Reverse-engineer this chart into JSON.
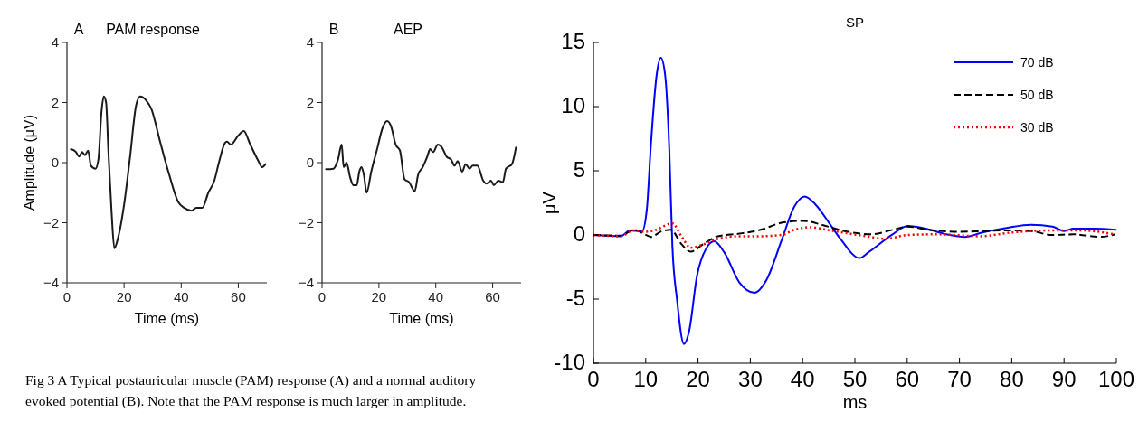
{
  "chart_data": [
    {
      "type": "line",
      "title": "PAM response",
      "xlabel": "Time (ms)",
      "ylabel": "Amplitude (μV)",
      "xlim": [
        0,
        70
      ],
      "ylim": [
        -4,
        4
      ],
      "xticks": [
        0,
        20,
        40,
        60
      ],
      "yticks": [
        -4,
        -2,
        0,
        2,
        4
      ],
      "legend": false,
      "annotations": [
        "A",
        "Fig 3 A Typical postauricular muscle (PAM) response (A) and a normal auditory evoked potential (B). Note that the PAM response is much larger in amplitude."
      ],
      "series": [
        {
          "color": "#1a1a1a",
          "x": [
            1.4,
            3.2,
            4.2,
            5.3,
            6.3,
            7.4,
            8.4,
            10,
            11,
            12.1,
            12.9,
            13.7,
            14.5,
            15.6,
            16.6,
            17.9,
            20,
            22.1,
            24.2,
            25.6,
            27.9,
            29.5,
            32.6,
            35.8,
            38.9,
            41,
            43.7,
            45.3,
            47.4,
            49.5,
            51.6,
            53.2,
            55.3,
            56,
            57.4,
            60,
            61.9,
            64.2,
            66.8,
            68.4,
            69.5
          ],
          "values": [
            0.45,
            0.35,
            0.2,
            0.35,
            0.25,
            0.4,
            -0.1,
            -0.2,
            0.1,
            1.7,
            2.2,
            2.0,
            0.4,
            -1.6,
            -2.85,
            -2.5,
            -1.4,
            0.2,
            1.9,
            2.2,
            2.05,
            1.8,
            0.7,
            -0.4,
            -1.3,
            -1.5,
            -1.6,
            -1.5,
            -1.5,
            -1.0,
            -0.6,
            0,
            0.65,
            0.7,
            0.6,
            0.9,
            1.05,
            0.6,
            0.1,
            -0.15,
            -0.05
          ]
        }
      ]
    },
    {
      "type": "line",
      "title": "AEP",
      "xlabel": "Time (ms)",
      "xlim": [
        0,
        70
      ],
      "ylim": [
        -4,
        4
      ],
      "xticks": [
        0,
        20,
        40,
        60
      ],
      "yticks": [
        -4,
        -2,
        0,
        2,
        4
      ],
      "legend": false,
      "annotations": [
        "B"
      ],
      "series": [
        {
          "color": "#1a1a1a",
          "x": [
            1.4,
            4,
            5.6,
            6.9,
            7.6,
            8.6,
            9.9,
            11,
            12.2,
            13.1,
            13.9,
            14.7,
            15.7,
            17.3,
            19.5,
            21.1,
            22.9,
            24.3,
            25.9,
            27.4,
            29,
            30.6,
            32.6,
            33.8,
            35.4,
            37,
            38,
            39.1,
            40.7,
            42.2,
            43.8,
            45.4,
            46.6,
            47.7,
            49.3,
            50.5,
            51.9,
            53,
            54.6,
            56.7,
            57.8,
            59.4,
            60.4,
            62,
            63.6,
            64.7,
            66.8,
            68.2
          ],
          "values": [
            -0.22,
            -0.2,
            0.1,
            0.6,
            -0.15,
            0,
            -0.5,
            -0.75,
            -0.75,
            -0.3,
            -0.15,
            -0.4,
            -1.0,
            -0.3,
            0.5,
            1.1,
            1.38,
            1.2,
            0.6,
            0.4,
            -0.55,
            -0.65,
            -0.95,
            -0.4,
            -0.15,
            0.2,
            0.45,
            0.35,
            0.6,
            0.5,
            0.2,
            0.1,
            -0.1,
            0.05,
            -0.3,
            -0.05,
            -0.2,
            -0.1,
            -0.1,
            -0.6,
            -0.7,
            -0.6,
            -0.75,
            -0.6,
            -0.65,
            -0.2,
            -0.05,
            0.5
          ]
        }
      ]
    },
    {
      "type": "line",
      "title": "SP",
      "xlabel": "ms",
      "ylabel": "μV",
      "xlim": [
        0,
        100
      ],
      "ylim": [
        -10,
        15
      ],
      "xticks": [
        0,
        10,
        20,
        30,
        40,
        50,
        60,
        70,
        80,
        90,
        100
      ],
      "yticks": [
        -10,
        -5,
        0,
        5,
        10,
        15
      ],
      "legend": "top right",
      "series": [
        {
          "name": "70 dB",
          "color": "#0000ff",
          "line_style": "solid",
          "x": [
            0,
            5.2,
            7,
            9.3,
            10.2,
            11,
            12.1,
            12.9,
            13.7,
            14.5,
            15.1,
            16,
            17.3,
            18.3,
            19.8,
            21.5,
            23.1,
            25,
            27.9,
            30.8,
            33.1,
            36,
            38.4,
            40.4,
            42.4,
            45.3,
            47.4,
            50.9,
            52.6,
            57.2,
            60.1,
            62.9,
            67.5,
            71,
            74.4,
            79,
            83.7,
            87.8,
            90,
            91.8,
            95.9,
            99.9
          ],
          "values": [
            0,
            -0.1,
            0.35,
            0.3,
            1.95,
            7.1,
            12.5,
            13.8,
            12.5,
            6.7,
            -0.9,
            -5.1,
            -8.5,
            -7.5,
            -3.2,
            -1.1,
            -0.5,
            -1.35,
            -3.7,
            -4.5,
            -3.5,
            -0.4,
            2.2,
            3.0,
            2.4,
            0.8,
            -0.4,
            -1.8,
            -1.35,
            0.05,
            0.7,
            0.55,
            0.05,
            -0.15,
            0.2,
            0.55,
            0.8,
            0.65,
            0.3,
            0.5,
            0.5,
            0.4
          ]
        },
        {
          "name": "50 dB",
          "color": "#000000",
          "line_style": "dashed",
          "x": [
            0,
            5.2,
            7.8,
            9.8,
            11,
            13.1,
            14.8,
            16.9,
            18.6,
            20.9,
            23.8,
            27.9,
            32,
            36,
            40.1,
            43.6,
            48,
            53.2,
            57.2,
            60.1,
            64.1,
            69.9,
            74.5,
            79,
            83.7,
            87.7,
            91.8,
            96.9,
            99.8
          ],
          "values": [
            0,
            -0.05,
            0.4,
            0.05,
            -0.15,
            0.3,
            0.4,
            -0.75,
            -1.3,
            -0.75,
            -0.1,
            0.1,
            0.4,
            0.95,
            1.1,
            0.8,
            0.3,
            0.05,
            0.4,
            0.65,
            0.4,
            0.25,
            0.3,
            0.35,
            0.3,
            0,
            0.05,
            -0.15,
            0.05
          ]
        },
        {
          "name": "30 dB",
          "color": "#ff0000",
          "line_style": "dotted",
          "x": [
            0,
            5.2,
            7.6,
            9.8,
            11.6,
            15.1,
            16.9,
            18.6,
            20.9,
            23.8,
            27.9,
            32,
            36,
            38.4,
            41.3,
            45.3,
            51.4,
            56,
            60,
            65.8,
            73.9,
            80.2,
            87.7,
            93.5,
            99.5
          ],
          "values": [
            0,
            -0.1,
            0.35,
            0.25,
            0.35,
            0.9,
            -0.15,
            -1.0,
            -0.75,
            -0.3,
            -0.1,
            -0.1,
            0,
            0.4,
            0.6,
            0.35,
            -0.05,
            -0.3,
            0,
            0.05,
            -0.1,
            0.2,
            0.35,
            0.35,
            0.05
          ]
        }
      ]
    }
  ]
}
